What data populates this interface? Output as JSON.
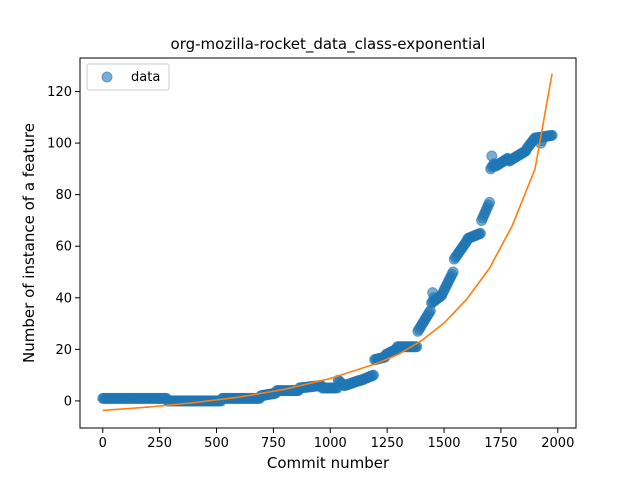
{
  "chart_data": {
    "type": "scatter",
    "title": "org-mozilla-rocket_data_class-exponential",
    "xlabel": "Commit number",
    "ylabel": "Number of instance of a feature",
    "xlim": [
      -100,
      2080
    ],
    "ylim": [
      -10.5,
      133
    ],
    "x_ticks": [
      0,
      250,
      500,
      750,
      1000,
      1250,
      1500,
      1750,
      2000
    ],
    "y_ticks": [
      0,
      20,
      40,
      60,
      80,
      100,
      120
    ],
    "grid": false,
    "legend": {
      "position": "top-left",
      "entries": [
        "data"
      ]
    },
    "colors": {
      "data": "#1f77b4",
      "fit": "#ff7f0e"
    },
    "series": [
      {
        "name": "data",
        "kind": "scatter",
        "segments": [
          {
            "x0": 0,
            "x1": 280,
            "y0": 1,
            "y1": 1,
            "step": 5
          },
          {
            "x0": 285,
            "x1": 520,
            "y0": 0,
            "y1": 0,
            "step": 5
          },
          {
            "x0": 525,
            "x1": 690,
            "y0": 1,
            "y1": 1,
            "step": 5
          },
          {
            "x0": 695,
            "x1": 760,
            "y0": 2,
            "y1": 3,
            "step": 5
          },
          {
            "x0": 765,
            "x1": 860,
            "y0": 4,
            "y1": 4,
            "step": 5
          },
          {
            "x0": 865,
            "x1": 960,
            "y0": 5,
            "y1": 6,
            "step": 5
          },
          {
            "x0": 965,
            "x1": 1030,
            "y0": 5,
            "y1": 5,
            "step": 5
          },
          {
            "x0": 1035,
            "x1": 1060,
            "y0": 8,
            "y1": 6,
            "step": 5
          },
          {
            "x0": 1065,
            "x1": 1130,
            "y0": 6,
            "y1": 8,
            "step": 5
          },
          {
            "x0": 1135,
            "x1": 1190,
            "y0": 8,
            "y1": 10,
            "step": 5
          },
          {
            "x0": 1195,
            "x1": 1240,
            "y0": 16,
            "y1": 17,
            "step": 5
          },
          {
            "x0": 1245,
            "x1": 1290,
            "y0": 18,
            "y1": 20,
            "step": 5
          },
          {
            "x0": 1295,
            "x1": 1380,
            "y0": 21,
            "y1": 21,
            "step": 5
          },
          {
            "x0": 1385,
            "x1": 1440,
            "y0": 27,
            "y1": 35,
            "step": 5
          },
          {
            "x0": 1445,
            "x1": 1490,
            "y0": 38,
            "y1": 41,
            "step": 5
          },
          {
            "x0": 1495,
            "x1": 1540,
            "y0": 42,
            "y1": 50,
            "step": 5
          },
          {
            "x0": 1545,
            "x1": 1600,
            "y0": 55,
            "y1": 62,
            "step": 5
          },
          {
            "x0": 1605,
            "x1": 1660,
            "y0": 63,
            "y1": 65,
            "step": 5
          },
          {
            "x0": 1665,
            "x1": 1700,
            "y0": 70,
            "y1": 77,
            "step": 5
          },
          {
            "x0": 1705,
            "x1": 1720,
            "y0": 90,
            "y1": 92,
            "step": 5
          },
          {
            "x0": 1725,
            "x1": 1780,
            "y0": 91,
            "y1": 94,
            "step": 5
          },
          {
            "x0": 1785,
            "x1": 1860,
            "y0": 93,
            "y1": 97,
            "step": 5
          },
          {
            "x0": 1865,
            "x1": 1900,
            "y0": 98,
            "y1": 102,
            "step": 5
          },
          {
            "x0": 1905,
            "x1": 1975,
            "y0": 102,
            "y1": 103,
            "step": 5
          }
        ],
        "extra_points": [
          [
            1450,
            42
          ],
          [
            1455,
            40
          ],
          [
            1710,
            95
          ],
          [
            1780,
            94
          ],
          [
            1925,
            100
          ],
          [
            1930,
            101
          ]
        ]
      },
      {
        "kind": "line",
        "x": [
          0,
          200,
          400,
          600,
          800,
          1000,
          1200,
          1300,
          1400,
          1500,
          1600,
          1700,
          1800,
          1900,
          1975
        ],
        "y": [
          -3.7,
          -2.4,
          -0.7,
          1.5,
          4.5,
          8.7,
          14.4,
          18.1,
          23.3,
          30.2,
          39.5,
          51.5,
          68.0,
          90.0,
          127.0
        ]
      }
    ]
  }
}
